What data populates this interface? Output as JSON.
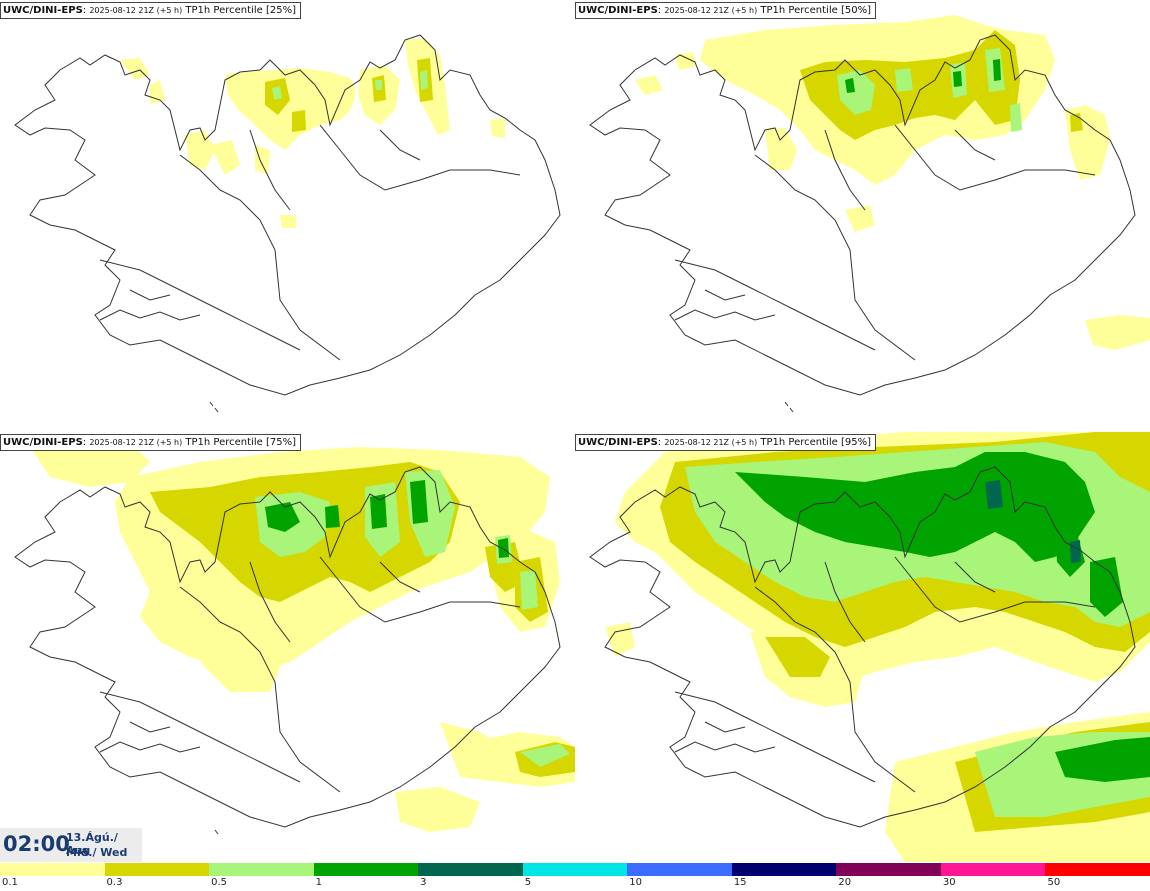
{
  "panels": [
    {
      "model": "UWC/DINI-EPS",
      "run": "2025-08-12 21Z (+5 h)",
      "field": "TP1h Percentile [25%]"
    },
    {
      "model": "UWC/DINI-EPS",
      "run": "2025-08-12 21Z (+5 h)",
      "field": "TP1h Percentile [50%]"
    },
    {
      "model": "UWC/DINI-EPS",
      "run": "2025-08-12 21Z (+5 h)",
      "field": "TP1h Percentile [75%]"
    },
    {
      "model": "UWC/DINI-EPS",
      "run": "2025-08-12 21Z (+5 h)",
      "field": "TP1h Percentile [95%]"
    }
  ],
  "time": {
    "clock": "02:00",
    "date_line1": "13.Ágú./ Aug",
    "date_line2": "Mið./ Wed"
  },
  "colorbar": {
    "labels": [
      "0.1",
      "0.3",
      "0.5",
      "1",
      "3",
      "5",
      "10",
      "15",
      "20",
      "30",
      "50"
    ],
    "colors": [
      "#ffff99",
      "#d6d600",
      "#a8f57a",
      "#00a300",
      "#00664d",
      "#00e6e6",
      "#3c6cff",
      "#00006e",
      "#800055",
      "#ff1493",
      "#ff0000"
    ]
  },
  "palette": {
    "light_yellow": "#ffff99",
    "olive_yellow": "#d6d600",
    "light_green": "#a8f57a",
    "green": "#00a300",
    "dark_green": "#00664d",
    "outline": "#333333"
  }
}
